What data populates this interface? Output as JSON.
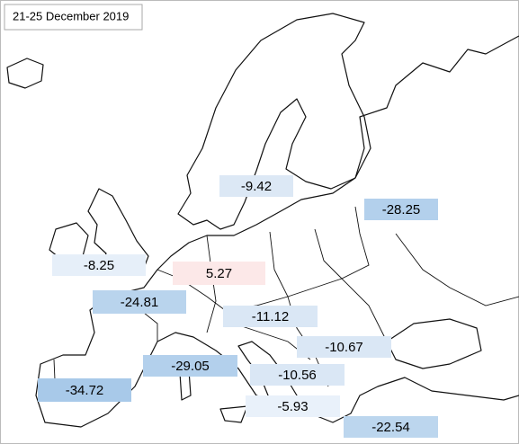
{
  "title": "21-25  December 2019",
  "labels": [
    {
      "value": -9.42,
      "color": "#dce8f5"
    },
    {
      "value": -28.25,
      "color": "#b3d0ec"
    },
    {
      "value": -8.25,
      "color": "#e6eff9"
    },
    {
      "value": 5.27,
      "color": "#fce8e8"
    },
    {
      "value": -24.81,
      "color": "#b9d4ed"
    },
    {
      "value": -11.12,
      "color": "#dae7f5"
    },
    {
      "value": -10.67,
      "color": "#dae7f5"
    },
    {
      "value": -29.05,
      "color": "#b3d0ec"
    },
    {
      "value": -10.56,
      "color": "#dae7f5"
    },
    {
      "value": -34.72,
      "color": "#a8c9e9"
    },
    {
      "value": -5.93,
      "color": "#e9f1fa"
    },
    {
      "value": -22.54,
      "color": "#bcd6ee"
    }
  ]
}
